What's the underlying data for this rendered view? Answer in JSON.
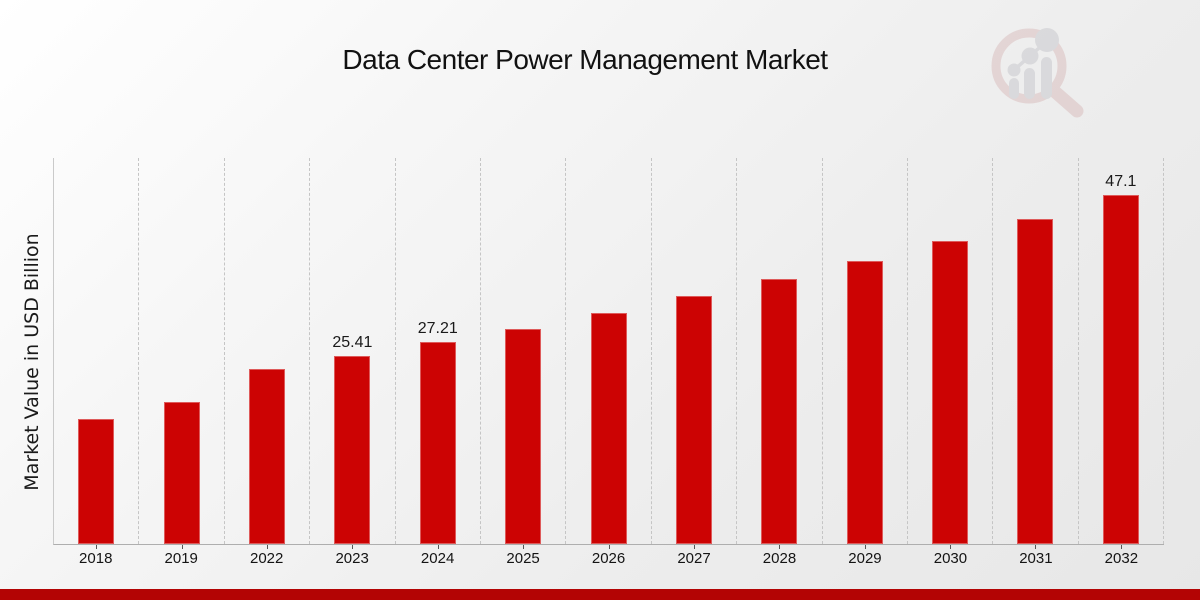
{
  "header": {
    "title": "Data Center Power Management Market"
  },
  "y_axis": {
    "label": "Market Value in USD Billion"
  },
  "chart_data": {
    "type": "bar",
    "title": "Data Center Power Management Market",
    "xlabel": "",
    "ylabel": "Market Value in USD Billion",
    "categories": [
      "2018",
      "2019",
      "2022",
      "2023",
      "2024",
      "2025",
      "2026",
      "2027",
      "2028",
      "2029",
      "2030",
      "2031",
      "2032"
    ],
    "values": [
      16.9,
      19.2,
      23.6,
      25.41,
      27.21,
      29.0,
      31.2,
      33.5,
      35.8,
      38.2,
      40.9,
      43.8,
      47.1
    ],
    "data_labels": {
      "2023": "25.41",
      "2024": "27.21",
      "2032": "47.1"
    },
    "ylim": [
      0,
      52.2
    ],
    "grid": "vertical-dashed",
    "legend": "none",
    "bar_color": "#cc0303"
  },
  "branding": {
    "logo_icon": "magnifier-bar-chart-logo",
    "logo_ring_color": "#b87070",
    "logo_bars_color": "#8b8b96",
    "footer_bar_color": "#b30404"
  }
}
